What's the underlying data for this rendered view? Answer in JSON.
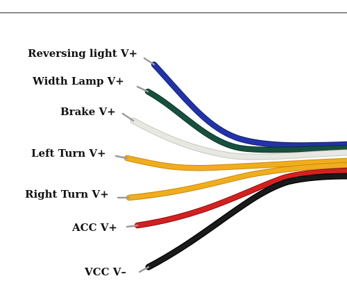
{
  "wires": [
    {
      "id": "reversing-light",
      "label": "Reversing light V+",
      "color": "#2233aa"
    },
    {
      "id": "width-lamp",
      "label": "Width Lamp V+",
      "color": "#17503f"
    },
    {
      "id": "brake",
      "label": "Brake V+",
      "color": "#e8e8e2"
    },
    {
      "id": "left-turn",
      "label": "Left Turn V+",
      "color": "#f0ad1e"
    },
    {
      "id": "right-turn",
      "label": "Right Turn V+",
      "color": "#f0ad1e"
    },
    {
      "id": "acc",
      "label": "ACC V+",
      "color": "#d42020"
    },
    {
      "id": "vcc",
      "label": "VCC V–",
      "color": "#1a1a1a"
    }
  ]
}
